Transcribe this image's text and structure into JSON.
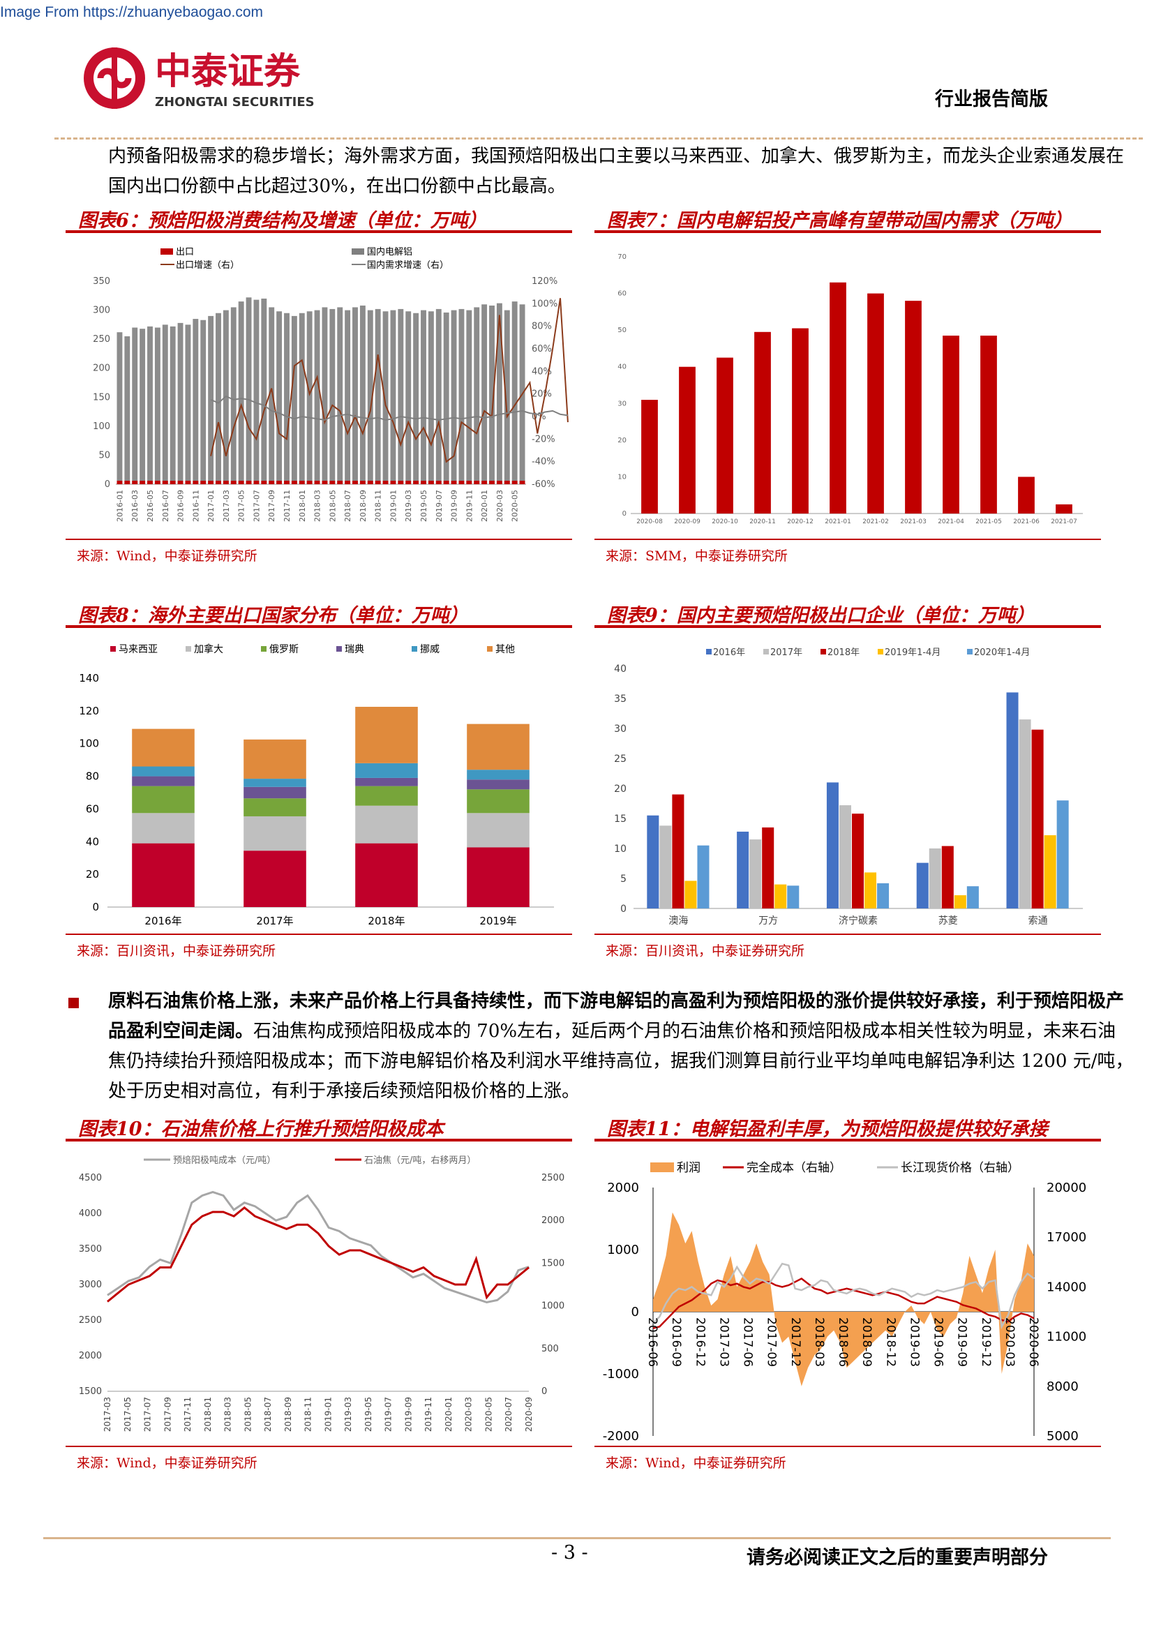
{
  "header": {
    "source_url": "Image From https://zhuanyebaogao.com",
    "logo_cn": "中泰证券",
    "logo_en": "ZHONGTAI SECURITIES",
    "report_type": "行业报告简版"
  },
  "intro_text": "内预备阳极需求的稳步增长；海外需求方面，我国预焙阳极出口主要以马来西亚、加拿大、俄罗斯为主，而龙头企业索通发展在国内出口份额中占比超过30%，在出口份额中占比最高。",
  "fig6": {
    "title": "图表6：预焙阳极消费结构及增速（单位：万吨）",
    "source": "来源：Wind，中泰证券研究所",
    "legend": [
      "出口",
      "国内电解铝",
      "出口增速（右）",
      "国内需求增速（右）"
    ],
    "y_ticks": [
      "350",
      "300",
      "250",
      "200",
      "150",
      "100",
      "50",
      "0"
    ],
    "y2_ticks": [
      "120%",
      "100%",
      "80%",
      "60%",
      "40%",
      "20%",
      "0%",
      "-20%",
      "-40%",
      "-60%"
    ],
    "x_labels": [
      "2016-01",
      "2016-03",
      "2016-05",
      "2016-07",
      "2016-09",
      "2016-11",
      "2017-01",
      "2017-03",
      "2017-05",
      "2017-07",
      "2017-09",
      "2017-11",
      "2018-01",
      "2018-03",
      "2018-05",
      "2018-07",
      "2018-09",
      "2018-11",
      "2019-01",
      "2019-03",
      "2019-05",
      "2019-07",
      "2019-09",
      "2019-11",
      "2020-01",
      "2020-03",
      "2020-05"
    ]
  },
  "fig7": {
    "title": "图表7：国内电解铝投产高峰有望带动国内需求（万吨）",
    "source": "来源：SMM，中泰证券研究所",
    "chart_data": {
      "type": "bar",
      "categories": [
        "2020-08",
        "2020-09",
        "2020-10",
        "2020-11",
        "2020-12",
        "2021-01",
        "2021-02",
        "2021-03",
        "2021-04",
        "2021-05",
        "2021-06",
        "2021-07"
      ],
      "values": [
        31,
        40,
        42.5,
        49.5,
        50.5,
        63,
        60,
        58,
        48.5,
        48.5,
        10,
        2.5
      ],
      "y_ticks": [
        "70",
        "60",
        "50",
        "40",
        "30",
        "20",
        "10",
        "0"
      ],
      "ylim": [
        0,
        70
      ],
      "color": "#c00000"
    }
  },
  "fig8": {
    "title": "图表8：海外主要出口国家分布（单位：万吨）",
    "source": "来源：百川资讯，中泰证券研究所",
    "chart_data": {
      "type": "bar",
      "stacked": true,
      "categories": [
        "2016年",
        "2017年",
        "2018年",
        "2019年"
      ],
      "series": [
        {
          "name": "马来西亚",
          "color": "#c0002a",
          "values": [
            39,
            34.5,
            39,
            36.5
          ]
        },
        {
          "name": "加拿大",
          "color": "#bfbfbf",
          "values": [
            18.5,
            21,
            23,
            21
          ]
        },
        {
          "name": "俄罗斯",
          "color": "#77a53a",
          "values": [
            16.5,
            11,
            12,
            14.5
          ]
        },
        {
          "name": "瑞典",
          "color": "#6b5393",
          "values": [
            6,
            7,
            5,
            6
          ]
        },
        {
          "name": "挪威",
          "color": "#3f98c2",
          "values": [
            6,
            5,
            9,
            6
          ]
        },
        {
          "name": "其他",
          "color": "#e08a3c",
          "values": [
            23,
            24,
            34.5,
            28
          ]
        }
      ],
      "y_ticks": [
        "140",
        "120",
        "100",
        "80",
        "60",
        "40",
        "20",
        "0"
      ],
      "ylim": [
        0,
        140
      ]
    }
  },
  "fig9": {
    "title": "图表9：国内主要预焙阳极出口企业（单位：万吨）",
    "source": "来源：百川资讯，中泰证券研究所",
    "chart_data": {
      "type": "bar",
      "categories": [
        "澳海",
        "万方",
        "济宁碳素",
        "苏菱",
        "索通"
      ],
      "series": [
        {
          "name": "2016年",
          "color": "#4472c4",
          "values": [
            15.5,
            12.8,
            21,
            7.6,
            36
          ]
        },
        {
          "name": "2017年",
          "color": "#bfbfbf",
          "values": [
            13.8,
            11.5,
            17.2,
            10,
            31.5
          ]
        },
        {
          "name": "2018年",
          "color": "#c00000",
          "values": [
            19,
            13.5,
            15.8,
            10.4,
            29.8
          ]
        },
        {
          "name": "2019年1-4月",
          "color": "#ffc000",
          "values": [
            4.6,
            4,
            6,
            2.2,
            12.2
          ]
        },
        {
          "name": "2020年1-4月",
          "color": "#5b9bd5",
          "values": [
            10.5,
            3.8,
            4.2,
            3.7,
            18
          ]
        }
      ],
      "y_ticks": [
        "40",
        "35",
        "30",
        "25",
        "20",
        "15",
        "10",
        "5",
        "0"
      ],
      "ylim": [
        0,
        40
      ]
    }
  },
  "para2": {
    "bold": "原料石油焦价格上涨，未来产品价格上行具备持续性，而下游电解铝的高盈利为预焙阳极的涨价提供较好承接，利于预焙阳极产品盈利空间走阔。",
    "normal": "石油焦构成预焙阳极成本的 70%左右，延后两个月的石油焦价格和预焙阳极成本相关性较为明显，未来石油焦仍持续抬升预焙阳极成本；而下游电解铝价格及利润水平维持高位，据我们测算目前行业平均单吨电解铝净利达 1200 元/吨，处于历史相对高位，有利于承接后续预焙阳极价格的上涨。"
  },
  "fig10": {
    "title": "图表10：石油焦价格上行推升预焙阳极成本",
    "source": "来源：Wind，中泰证券研究所",
    "legend": [
      "预焙阳极吨成本（元/吨）",
      "石油焦（元/吨，右移两月）"
    ],
    "y_ticks": [
      "4500",
      "4000",
      "3500",
      "3000",
      "2500",
      "2000",
      "1500"
    ],
    "y2_ticks": [
      "2500",
      "2000",
      "1500",
      "1000",
      "500",
      "0"
    ],
    "x_labels": [
      "2017-03",
      "2017-05",
      "2017-07",
      "2017-09",
      "2017-11",
      "2018-01",
      "2018-03",
      "2018-05",
      "2018-07",
      "2018-09",
      "2018-11",
      "2019-01",
      "2019-03",
      "2019-05",
      "2019-07",
      "2019-09",
      "2019-11",
      "2020-01",
      "2020-03",
      "2020-05",
      "2020-07",
      "2020-09"
    ]
  },
  "fig11": {
    "title": "图表11：电解铝盈利丰厚，为预焙阳极提供较好承接",
    "source": "来源：Wind，中泰证券研究所",
    "legend": [
      "利润",
      "完全成本（右轴）",
      "长江现货价格（右轴）"
    ],
    "y_ticks": [
      "2000",
      "1000",
      "0",
      "-1000",
      "-2000"
    ],
    "y2_ticks": [
      "20000",
      "17000",
      "14000",
      "11000",
      "8000",
      "5000"
    ],
    "x_labels": [
      "2016-06",
      "2016-09",
      "2016-12",
      "2017-03",
      "2017-06",
      "2017-09",
      "2017-12",
      "2018-03",
      "2018-06",
      "2018-09",
      "2018-12",
      "2019-03",
      "2019-06",
      "2019-09",
      "2019-12",
      "2020-03",
      "2020-06"
    ]
  },
  "footer": {
    "page": "- 3 -",
    "disclaimer": "请务必阅读正文之后的重要声明部分"
  }
}
